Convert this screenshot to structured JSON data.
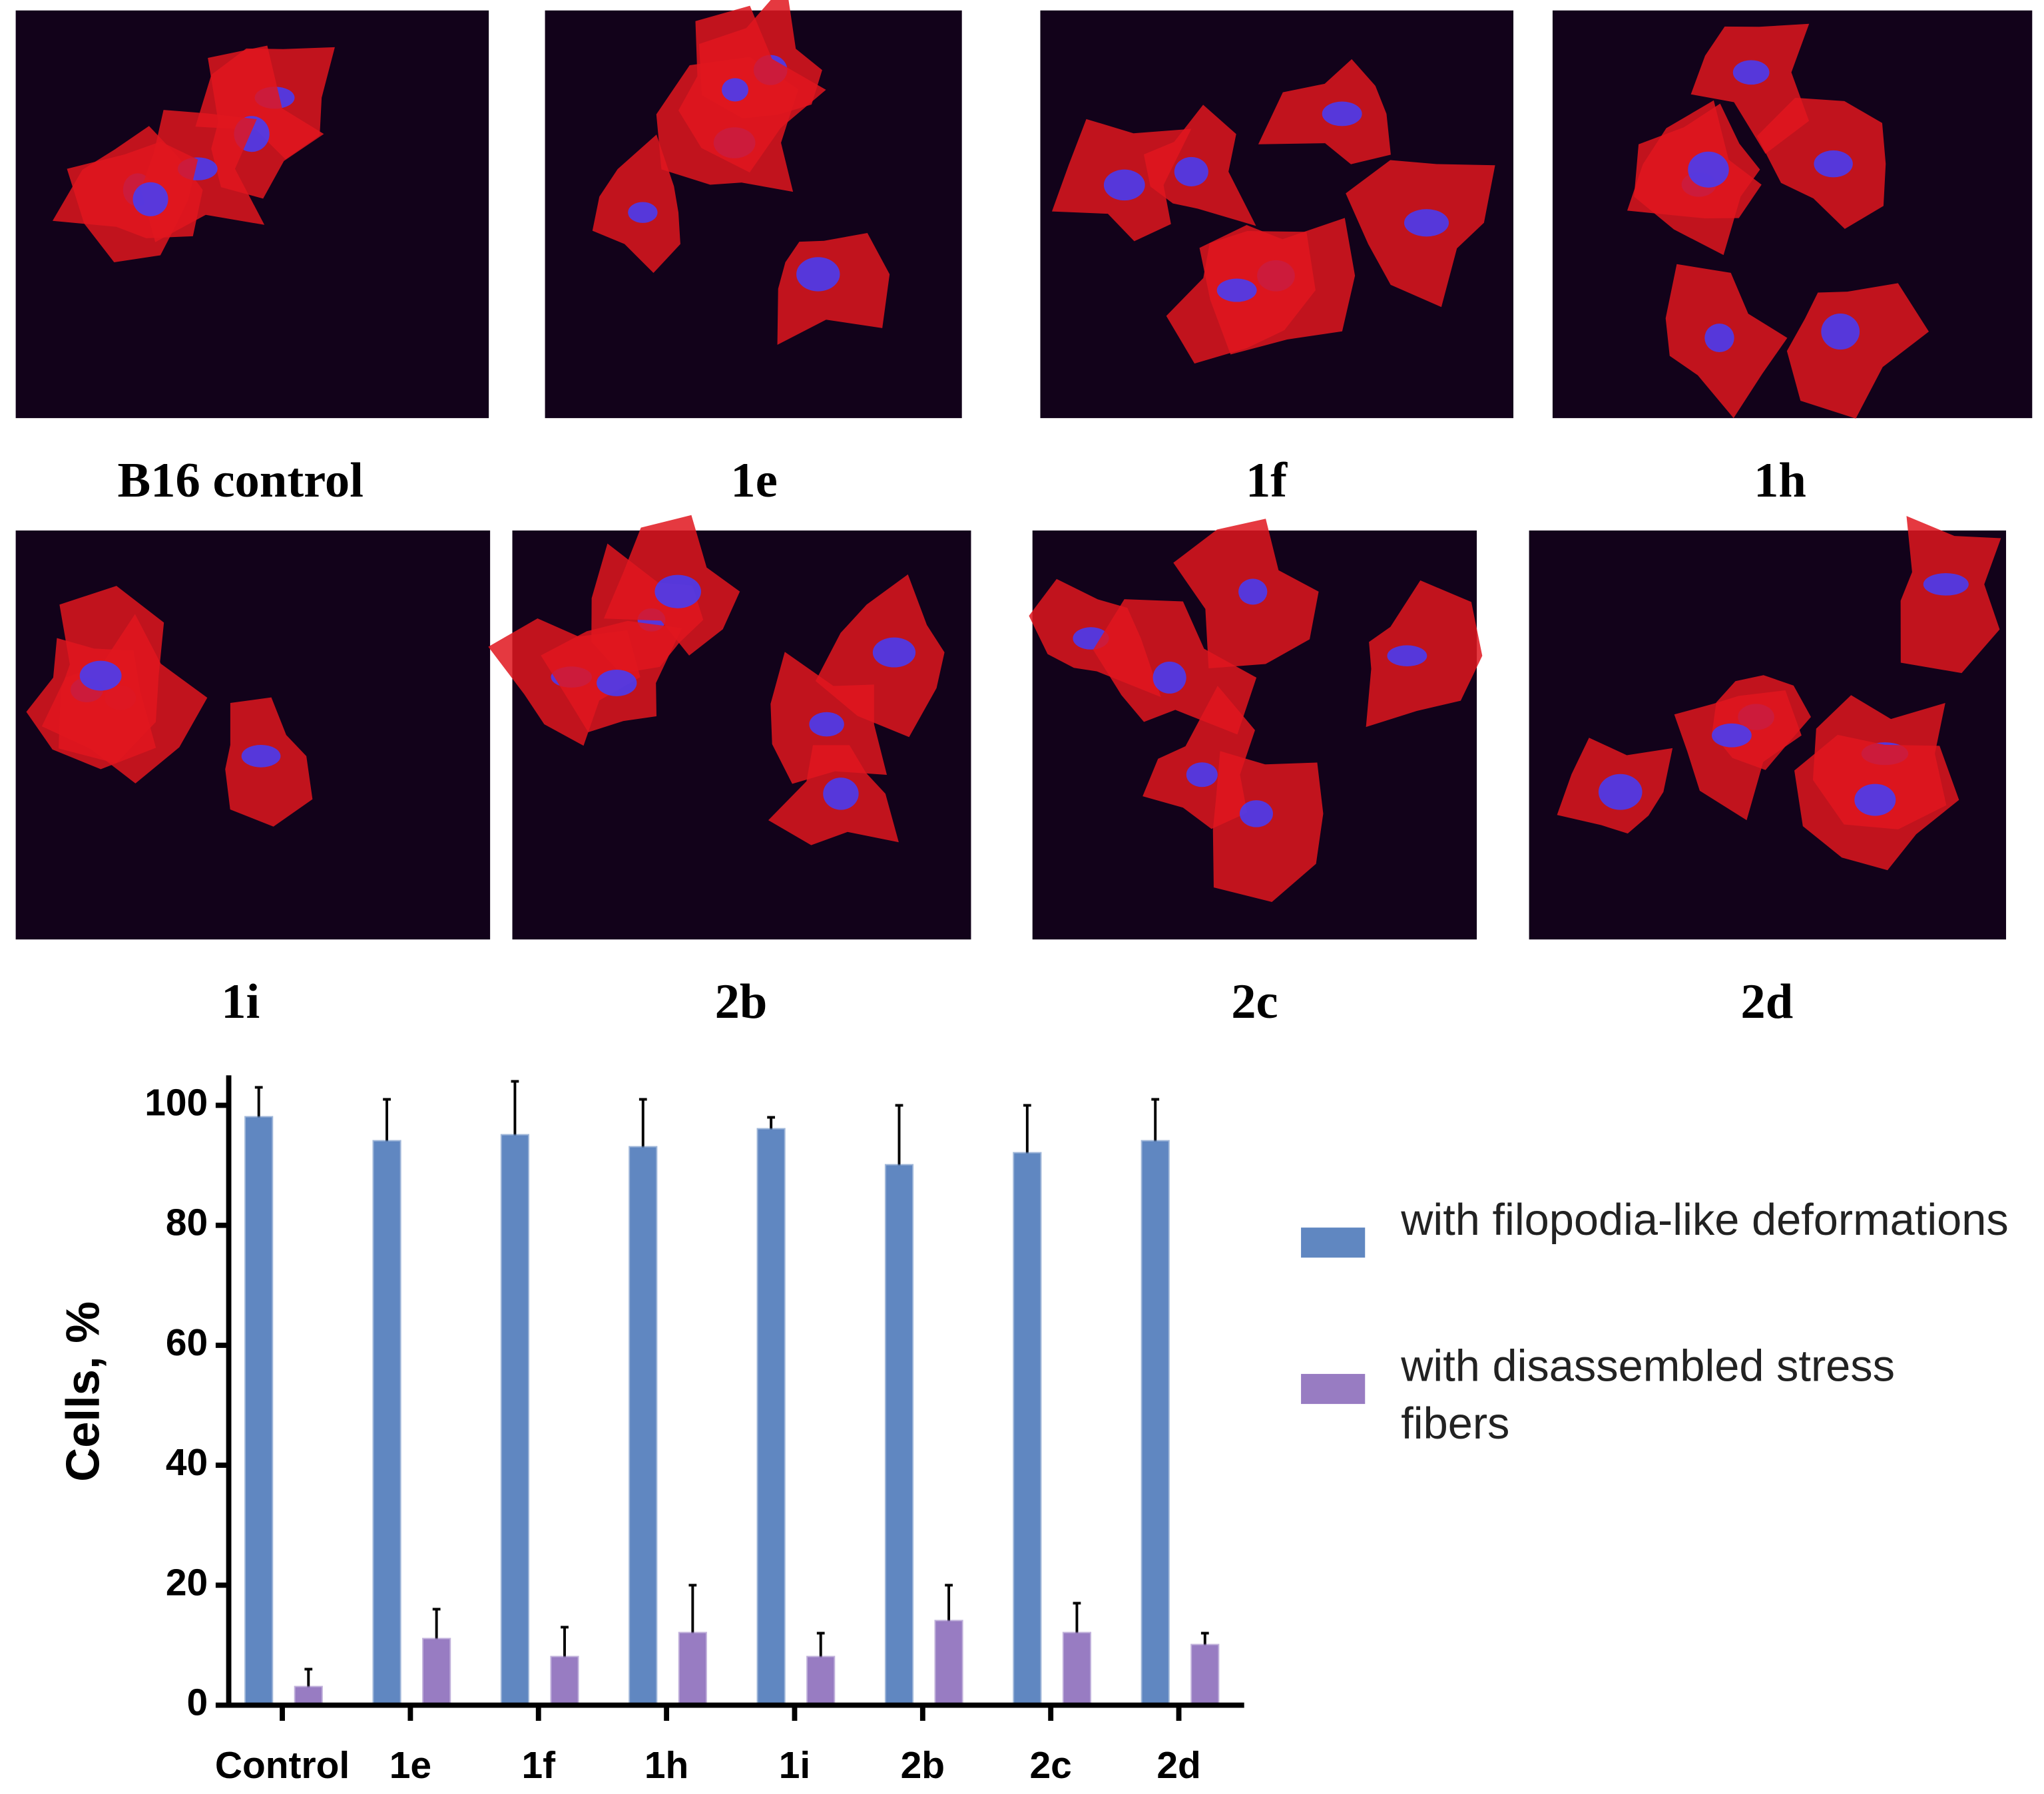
{
  "panels": [
    "B16 control",
    "1e",
    "1f",
    "1h",
    "1i",
    "2b",
    "2c",
    "2d"
  ],
  "chart_data": {
    "type": "bar",
    "y_label": "Cells, %",
    "categories": [
      "Control",
      "1e",
      "1f",
      "1h",
      "1i",
      "2b",
      "2c",
      "2d"
    ],
    "series": [
      {
        "name": "with filopodia-like deformations",
        "color": "#6b96d6",
        "values": [
          98,
          94,
          95,
          93,
          96,
          90,
          92,
          94
        ],
        "errors": [
          5,
          7,
          9,
          8,
          2,
          10,
          8,
          7
        ]
      },
      {
        "name": "with disassembled stress fibers",
        "color": "#a98ad8",
        "values": [
          3,
          11,
          8,
          12,
          8,
          14,
          12,
          10
        ],
        "errors": [
          3,
          5,
          5,
          8,
          4,
          6,
          5,
          2
        ]
      }
    ],
    "ylim": [
      0,
      105
    ],
    "yticks": [
      0,
      20,
      40,
      60,
      80,
      100
    ]
  }
}
